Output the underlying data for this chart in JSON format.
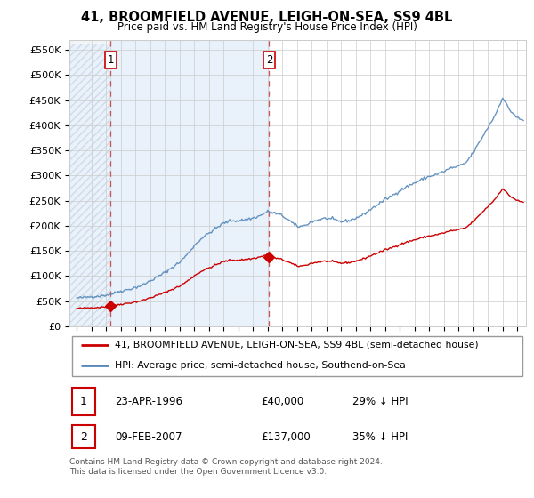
{
  "title": "41, BROOMFIELD AVENUE, LEIGH-ON-SEA, SS9 4BL",
  "subtitle": "Price paid vs. HM Land Registry's House Price Index (HPI)",
  "legend_line1": "41, BROOMFIELD AVENUE, LEIGH-ON-SEA, SS9 4BL (semi-detached house)",
  "legend_line2": "HPI: Average price, semi-detached house, Southend-on-Sea",
  "table_row1_date": "23-APR-1996",
  "table_row1_price": "£40,000",
  "table_row1_hpi": "29% ↓ HPI",
  "table_row2_date": "09-FEB-2007",
  "table_row2_price": "£137,000",
  "table_row2_hpi": "35% ↓ HPI",
  "footnote": "Contains HM Land Registry data © Crown copyright and database right 2024.\nThis data is licensed under the Open Government Licence v3.0.",
  "ylabel_ticks": [
    "£0",
    "£50K",
    "£100K",
    "£150K",
    "£200K",
    "£250K",
    "£300K",
    "£350K",
    "£400K",
    "£450K",
    "£500K",
    "£550K"
  ],
  "ytick_vals": [
    0,
    50000,
    100000,
    150000,
    200000,
    250000,
    300000,
    350000,
    400000,
    450000,
    500000,
    550000
  ],
  "red_line_color": "#cc0000",
  "blue_line_color": "#5588bb",
  "sale1_year": 1996.31,
  "sale1_price": 40000,
  "sale2_year": 2007.11,
  "sale2_price": 137000,
  "vline_color": "#cc4444",
  "shade_color": "#ddeeff",
  "hatch_color": "#ccccdd",
  "bg_color": "#f8f8f8"
}
